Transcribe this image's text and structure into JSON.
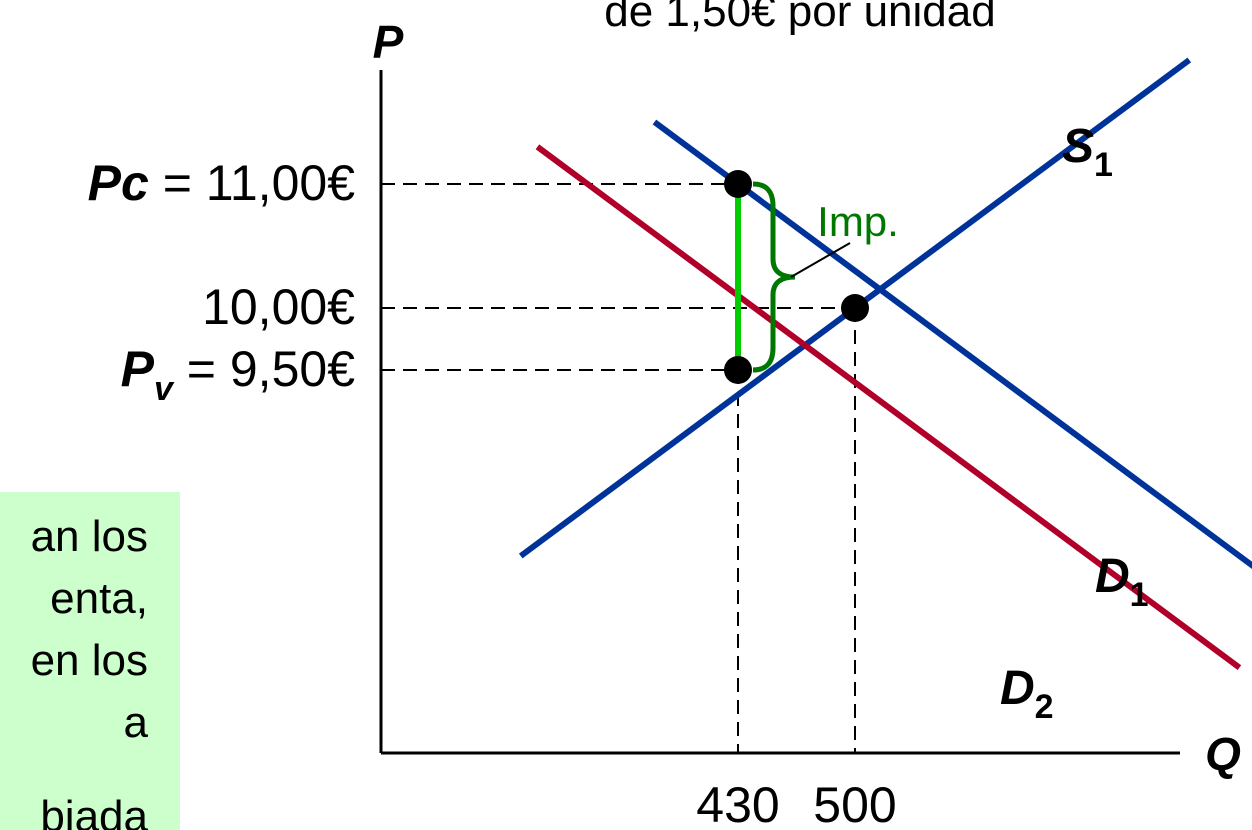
{
  "chart_data": {
    "type": "line",
    "title_fragment": "de 1,50€ por unidad",
    "xlabel": "Q",
    "ylabel": "P",
    "series": [
      {
        "name": "S1",
        "label_main": "S",
        "label_sub": "1",
        "color": "#003399",
        "points": [
          [
            300,
            8
          ],
          [
            500,
            10
          ],
          [
            700,
            12
          ]
        ]
      },
      {
        "name": "D1",
        "label_main": "D",
        "label_sub": "1",
        "color": "#003399",
        "points": [
          [
            380,
            11.5
          ],
          [
            800,
            7.3
          ]
        ]
      },
      {
        "name": "D2",
        "label_main": "D",
        "label_sub": "2",
        "color": "#b0002a",
        "points": [
          [
            310,
            11.3
          ],
          [
            730,
            7.1
          ]
        ]
      }
    ],
    "equilibria": [
      {
        "x": 430,
        "y": 11.0
      },
      {
        "x": 500,
        "y": 10.0
      },
      {
        "x": 430,
        "y": 9.5
      }
    ],
    "price_ticks": [
      {
        "value": 11.0,
        "prefix": "Pc",
        "prefix_sub": "",
        "eq": " = ",
        "text": "11,00€"
      },
      {
        "value": 10.0,
        "prefix": "",
        "prefix_sub": "",
        "eq": "",
        "text": "10,00€"
      },
      {
        "value": 9.5,
        "prefix": "P",
        "prefix_sub": "v",
        "eq": " = ",
        "text": "9,50€"
      }
    ],
    "quantity_ticks": [
      {
        "value": 430,
        "text": "430"
      },
      {
        "value": 500,
        "text": "500"
      }
    ],
    "tax_annotation": "Imp.",
    "tax_color": "#00cc00",
    "brace_color": "#007700"
  },
  "note": {
    "lines": [
      "an los",
      "enta,",
      "en los",
      "a",
      "biada"
    ]
  }
}
